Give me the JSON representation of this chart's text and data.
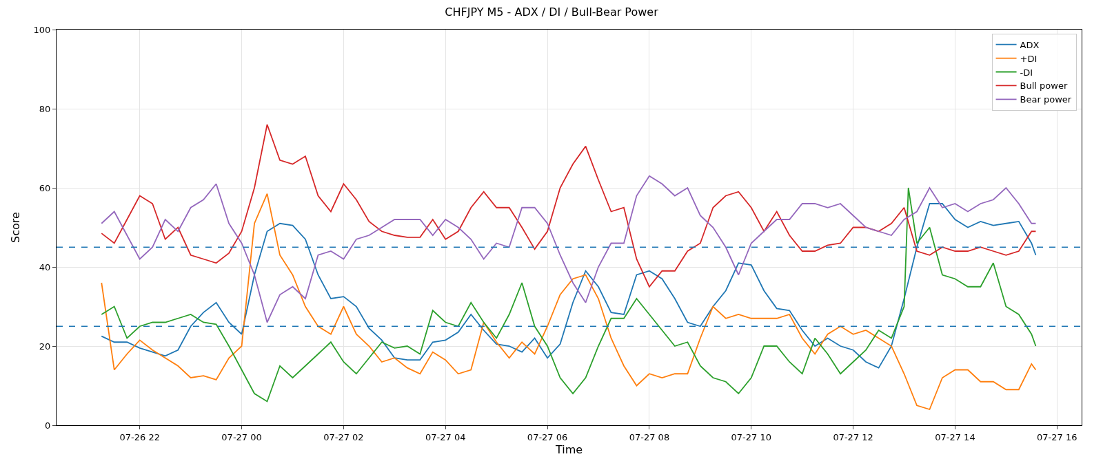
{
  "chart_data": {
    "type": "line",
    "title": "CHFJPY M5 - ADX / DI / Bull-Bear Power",
    "xlabel": "Time",
    "ylabel": "Score",
    "x": [
      "--07-26T21:15",
      "--07-26T21:30",
      "--07-26T21:45",
      "--07-26T22:00",
      "--07-26T22:15",
      "--07-26T22:30",
      "--07-26T22:45",
      "--07-26T23:00",
      "--07-26T23:15",
      "--07-26T23:30",
      "--07-26T23:45",
      "--07-27T00:00",
      "--07-27T00:15",
      "--07-27T00:30",
      "--07-27T00:45",
      "--07-27T01:00",
      "--07-27T01:15",
      "--07-27T01:30",
      "--07-27T01:45",
      "--07-27T02:00",
      "--07-27T02:15",
      "--07-27T02:30",
      "--07-27T02:45",
      "--07-27T03:00",
      "--07-27T03:15",
      "--07-27T03:30",
      "--07-27T03:45",
      "--07-27T04:00",
      "--07-27T04:15",
      "--07-27T04:30",
      "--07-27T04:45",
      "--07-27T05:00",
      "--07-27T05:15",
      "--07-27T05:30",
      "--07-27T05:45",
      "--07-27T06:00",
      "--07-27T06:15",
      "--07-27T06:30",
      "--07-27T06:45",
      "--07-27T07:00",
      "--07-27T07:15",
      "--07-27T07:30",
      "--07-27T07:45",
      "--07-27T08:00",
      "--07-27T08:15",
      "--07-27T08:30",
      "--07-27T08:45",
      "--07-27T09:00",
      "--07-27T09:15",
      "--07-27T09:30",
      "--07-27T09:45",
      "--07-27T10:00",
      "--07-27T10:15",
      "--07-27T10:30",
      "--07-27T10:45",
      "--07-27T11:00",
      "--07-27T11:15",
      "--07-27T11:30",
      "--07-27T11:45",
      "--07-27T12:00",
      "--07-27T12:15",
      "--07-27T12:30",
      "--07-27T12:45",
      "--07-27T13:00",
      "--07-27T13:15",
      "--07-27T13:30",
      "--07-27T13:45",
      "--07-27T14:00",
      "--07-27T14:15",
      "--07-27T14:30",
      "--07-27T14:45",
      "--07-27T15:00",
      "--07-27T15:15",
      "--07-27T15:30",
      "--07-27T15:35"
    ],
    "series": [
      {
        "name": "ADX",
        "color": "#1f77b4",
        "values": [
          22.5,
          21,
          21,
          19.5,
          18.5,
          17.5,
          19,
          25,
          28.5,
          31,
          26,
          23,
          38,
          49,
          51,
          50.5,
          47,
          38,
          32,
          32.5,
          30,
          24.5,
          21.5,
          17,
          16.5,
          16.5,
          21,
          21.5,
          23.5,
          28,
          24,
          20.5,
          20,
          18.5,
          22,
          17,
          20.5,
          31,
          39,
          35,
          28.5,
          28,
          38,
          39,
          37,
          32,
          26,
          25,
          30,
          34,
          41,
          40.5,
          34,
          29.5,
          29,
          24,
          20,
          22,
          20,
          19,
          16,
          14.5,
          20,
          32,
          45,
          56,
          56,
          52,
          50,
          51.5,
          50.5,
          51,
          51.5,
          46,
          43
        ]
      },
      {
        "name": "+DI",
        "color": "#ff7f0e",
        "values": [
          36,
          14,
          18,
          21.5,
          19,
          17,
          15,
          12,
          12.5,
          11.5,
          17,
          20,
          51,
          58.5,
          43,
          38,
          30,
          25,
          23,
          30,
          23,
          20,
          16,
          17,
          14.5,
          13,
          18.5,
          16.5,
          13,
          14,
          26,
          21,
          17,
          21,
          18,
          25,
          33,
          37,
          38,
          32,
          22,
          15,
          10,
          13,
          12,
          13,
          13,
          22,
          30,
          27,
          28,
          27,
          27,
          27,
          28,
          22,
          18,
          23,
          25,
          23,
          24,
          22,
          20,
          13,
          5,
          4,
          12,
          14,
          14,
          11,
          11,
          9,
          9,
          15.5,
          14
        ]
      },
      {
        "name": "-DI",
        "color": "#2ca02c",
        "x": [
          "--07-26T21:15",
          "--07-26T21:30",
          "--07-26T21:45",
          "--07-26T22:00",
          "--07-26T22:15",
          "--07-26T22:30",
          "--07-26T22:45",
          "--07-26T23:00",
          "--07-26T23:15",
          "--07-26T23:30",
          "--07-26T23:45",
          "--07-27T00:00",
          "--07-27T00:15",
          "--07-27T00:30",
          "--07-27T00:45",
          "--07-27T01:00",
          "--07-27T01:15",
          "--07-27T01:30",
          "--07-27T01:45",
          "--07-27T02:00",
          "--07-27T02:15",
          "--07-27T02:30",
          "--07-27T02:45",
          "--07-27T03:00",
          "--07-27T03:15",
          "--07-27T03:30",
          "--07-27T03:45",
          "--07-27T04:00",
          "--07-27T04:15",
          "--07-27T04:30",
          "--07-27T04:45",
          "--07-27T05:00",
          "--07-27T05:15",
          "--07-27T05:30",
          "--07-27T05:45",
          "--07-27T06:00",
          "--07-27T06:15",
          "--07-27T06:30",
          "--07-27T06:45",
          "--07-27T07:00",
          "--07-27T07:15",
          "--07-27T07:30",
          "--07-27T07:45",
          "--07-27T08:00",
          "--07-27T08:15",
          "--07-27T08:30",
          "--07-27T08:45",
          "--07-27T09:00",
          "--07-27T09:15",
          "--07-27T09:30",
          "--07-27T09:45",
          "--07-27T10:00",
          "--07-27T10:15",
          "--07-27T10:30",
          "--07-27T10:45",
          "--07-27T11:00",
          "--07-27T11:15",
          "--07-27T11:30",
          "--07-27T11:45",
          "--07-27T12:00",
          "--07-27T12:15",
          "--07-27T12:30",
          "--07-27T12:45",
          "--07-27T13:00",
          "--07-27T13:05",
          "--07-27T13:15",
          "--07-27T13:30",
          "--07-27T13:45",
          "--07-27T14:00",
          "--07-27T14:15",
          "--07-27T14:30",
          "--07-27T14:45",
          "--07-27T15:00",
          "--07-27T15:15",
          "--07-27T15:30",
          "--07-27T15:35"
        ],
        "values": [
          28,
          30,
          22,
          25,
          26,
          26,
          27,
          28,
          26,
          25.5,
          20,
          14,
          8,
          6,
          15,
          12,
          15,
          18,
          21,
          16,
          13,
          17,
          21,
          19.5,
          20,
          18,
          29,
          26,
          25,
          31,
          26,
          22,
          28,
          36,
          25,
          20,
          12,
          8,
          12,
          20,
          27,
          27,
          32,
          28,
          24,
          20,
          21,
          15,
          12,
          11,
          8,
          12,
          20,
          20,
          16,
          13,
          22,
          18,
          13,
          16,
          19,
          24,
          22,
          30,
          60,
          46,
          50,
          38,
          37,
          35,
          35,
          41,
          30,
          28,
          23,
          20
        ]
      },
      {
        "name": "Bull power",
        "color": "#d62728",
        "values": [
          48.5,
          46,
          52,
          58,
          56,
          47,
          50,
          43,
          42,
          41,
          43.5,
          49,
          60,
          76,
          67,
          66,
          68,
          58,
          54,
          61,
          57,
          51.5,
          49,
          48,
          47.5,
          47.5,
          52,
          47,
          49,
          55,
          59,
          55,
          55,
          50,
          44.5,
          49,
          60,
          66,
          70.5,
          62,
          54,
          55,
          42,
          35,
          39,
          39,
          44,
          46,
          55,
          58,
          59,
          55,
          49,
          54,
          48,
          44,
          44,
          45.5,
          46,
          50,
          50,
          49,
          51,
          55,
          44,
          43,
          45,
          44,
          44,
          45,
          44,
          43,
          44,
          49,
          49
        ]
      },
      {
        "name": "Bear power",
        "color": "#9467bd",
        "values": [
          51,
          54,
          48,
          42,
          45,
          52,
          49,
          55,
          57,
          61,
          51,
          46,
          38,
          26,
          33,
          35,
          32,
          43,
          44,
          42,
          47,
          48,
          50,
          52,
          52,
          52,
          48,
          52,
          50,
          47,
          42,
          46,
          45,
          55,
          55,
          51,
          43,
          36,
          31,
          40,
          46,
          46,
          58,
          63,
          61,
          58,
          60,
          53,
          50,
          45,
          38,
          46,
          49,
          52,
          52,
          56,
          56,
          55,
          56,
          53,
          50,
          49,
          48,
          52,
          54,
          60,
          55,
          56,
          54,
          56,
          57,
          60,
          56,
          51,
          51
        ]
      }
    ],
    "ref_lines": [
      {
        "axis": "y",
        "value": 45,
        "color": "#1f77b4",
        "line_style": "dashed"
      },
      {
        "axis": "y",
        "value": 25,
        "color": "#1f77b4",
        "line_style": "dashed"
      }
    ],
    "xlim": [
      "--07-26T20:22",
      "--07-27T16:29"
    ],
    "xticks": [
      {
        "value": "--07-26T22:00",
        "label": "07-26 22"
      },
      {
        "value": "--07-27T00:00",
        "label": "07-27 00"
      },
      {
        "value": "--07-27T02:00",
        "label": "07-27 02"
      },
      {
        "value": "--07-27T04:00",
        "label": "07-27 04"
      },
      {
        "value": "--07-27T06:00",
        "label": "07-27 06"
      },
      {
        "value": "--07-27T08:00",
        "label": "07-27 08"
      },
      {
        "value": "--07-27T10:00",
        "label": "07-27 10"
      },
      {
        "value": "--07-27T12:00",
        "label": "07-27 12"
      },
      {
        "value": "--07-27T14:00",
        "label": "07-27 14"
      },
      {
        "value": "--07-27T16:00",
        "label": "07-27 16"
      }
    ],
    "ylim": [
      0,
      100
    ],
    "yticks": [
      0,
      20,
      40,
      60,
      80,
      100
    ],
    "grid": true,
    "legend": "top right",
    "line_style": "solid",
    "marker": "none"
  }
}
